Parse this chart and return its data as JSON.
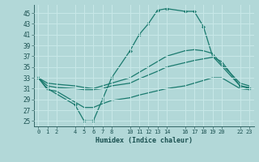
{
  "xlabel": "Humidex (Indice chaleur)",
  "bg_color": "#b2d8d8",
  "line_color": "#1a7a6e",
  "grid_color": "#c8e8e8",
  "xtick_positions": [
    0,
    1,
    2,
    4,
    5,
    6,
    7,
    8,
    10,
    11,
    12,
    13,
    14,
    16,
    17,
    18,
    19,
    20,
    22,
    23
  ],
  "xtick_labels": [
    "0",
    "1",
    "2",
    "4",
    "5",
    "6",
    "7",
    "8",
    "10",
    "11",
    "12",
    "13",
    "14",
    "16",
    "17",
    "18",
    "19",
    "20",
    "22",
    "23"
  ],
  "yticks": [
    25,
    27,
    29,
    31,
    33,
    35,
    37,
    39,
    41,
    43,
    45
  ],
  "ylim": [
    24.0,
    46.5
  ],
  "xlim": [
    -0.5,
    23.5
  ],
  "series": [
    {
      "x": [
        0,
        1,
        4,
        5,
        6,
        7,
        8,
        10,
        11,
        12,
        13,
        14,
        16,
        17,
        18,
        19,
        22,
        23
      ],
      "y": [
        33,
        31,
        28,
        25,
        25,
        29,
        33,
        38,
        41,
        43,
        45.5,
        45.8,
        45.3,
        45.3,
        42.5,
        37,
        31.5,
        31
      ],
      "marker": "D",
      "markersize": 2.0,
      "lw": 0.9
    },
    {
      "x": [
        0,
        1,
        2,
        4,
        5,
        6,
        7,
        8,
        10,
        11,
        12,
        13,
        14,
        16,
        17,
        18,
        19,
        20,
        22,
        23
      ],
      "y": [
        33,
        32,
        31.8,
        31.5,
        31.2,
        31.0,
        31.5,
        32.0,
        33.0,
        34.0,
        35.0,
        36.0,
        37.0,
        38.0,
        38.2,
        38.0,
        37.5,
        35.5,
        32.0,
        31.5
      ],
      "marker": null,
      "markersize": 0,
      "lw": 0.9
    },
    {
      "x": [
        0,
        1,
        2,
        4,
        5,
        6,
        7,
        8,
        10,
        11,
        12,
        13,
        14,
        16,
        17,
        18,
        19,
        20,
        22,
        23
      ],
      "y": [
        33,
        31.5,
        31.2,
        31.0,
        30.8,
        30.8,
        31.0,
        31.5,
        32.0,
        32.8,
        33.5,
        34.2,
        35.0,
        35.8,
        36.2,
        36.5,
        36.8,
        36.0,
        31.5,
        31.2
      ],
      "marker": null,
      "markersize": 0,
      "lw": 0.9
    },
    {
      "x": [
        0,
        1,
        2,
        4,
        5,
        6,
        7,
        8,
        10,
        11,
        12,
        13,
        14,
        16,
        17,
        18,
        19,
        20,
        22,
        23
      ],
      "y": [
        33,
        30.8,
        30.5,
        28.5,
        27.5,
        27.5,
        28.2,
        28.8,
        29.3,
        29.8,
        30.2,
        30.6,
        31.0,
        31.5,
        32.0,
        32.5,
        33.0,
        33.0,
        31.0,
        30.8
      ],
      "marker": null,
      "markersize": 0,
      "lw": 0.9
    }
  ]
}
